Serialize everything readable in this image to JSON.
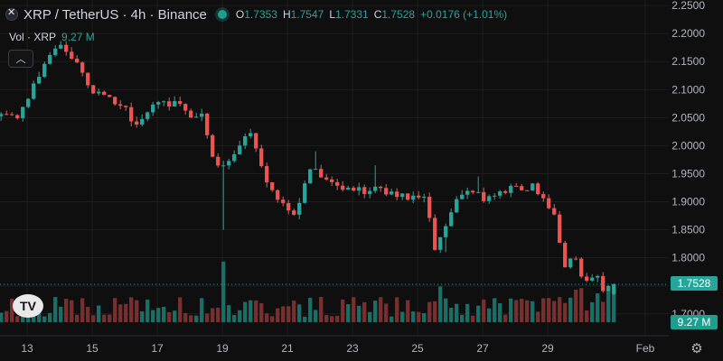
{
  "header": {
    "symbol": "XRP / TetherUS · 4h · Binance",
    "ohlc": {
      "o_label": "O",
      "o_value": "1.7353",
      "h_label": "H",
      "h_value": "1.7547",
      "l_label": "L",
      "l_value": "1.7331",
      "c_label": "C",
      "c_value": "1.7528",
      "change": "+0.0176 (+1.01%)"
    }
  },
  "volume_legend": {
    "label": "Vol · XRP",
    "value": "9.27 M"
  },
  "last_price_tag": "1.7528",
  "volume_tag": "9.27 M",
  "colors": {
    "up": "#26a69a",
    "down": "#ef5350",
    "background": "#0f0f0f",
    "grid": "#1e1e1e",
    "up_volume": "#1b6e66",
    "down_volume": "#7a2f2e"
  },
  "icons": {
    "logo": "xrp-logo-icon",
    "collapse": "chevron-up-icon",
    "settings": "gear-icon",
    "tradingview": "tradingview-logo-icon"
  },
  "chart_data": {
    "type": "candlestick",
    "title": "XRP / TetherUS · 4h · Binance",
    "x_tick_labels": [
      "13",
      "15",
      "17",
      "19",
      "21",
      "23",
      "25",
      "27",
      "29",
      "Feb"
    ],
    "y_tick_labels": [
      "1.7000",
      "1.7500",
      "1.8000",
      "1.8500",
      "1.9000",
      "1.9500",
      "2.0000",
      "2.0500",
      "2.1000",
      "2.1500",
      "2.2000",
      "2.2500"
    ],
    "y_range": [
      1.69,
      2.255
    ],
    "last_price": 1.7528,
    "last_volume": "9.27 M",
    "waypoints": [
      [
        1.7,
        2.06
      ],
      [
        12.8,
        2.05
      ],
      [
        13.2,
        2.09
      ],
      [
        13.7,
        2.15
      ],
      [
        14.1,
        2.18
      ],
      [
        14.6,
        2.15
      ],
      [
        15.1,
        2.1
      ],
      [
        15.6,
        2.08
      ],
      [
        16.1,
        2.07
      ],
      [
        16.5,
        2.03
      ],
      [
        17,
        2.07
      ],
      [
        17.5,
        2.08
      ],
      [
        18.1,
        2.06
      ],
      [
        18.6,
        2.05
      ],
      [
        18.9,
        1.97
      ],
      [
        19.1,
        1.96
      ],
      [
        19.6,
        1.99
      ],
      [
        20,
        2.02
      ],
      [
        20.5,
        1.94
      ],
      [
        21,
        1.89
      ],
      [
        21.4,
        1.88
      ],
      [
        21.8,
        1.96
      ],
      [
        22.3,
        1.94
      ],
      [
        22.9,
        1.92
      ],
      [
        23.6,
        1.92
      ],
      [
        24.3,
        1.92
      ],
      [
        24.9,
        1.91
      ],
      [
        25.4,
        1.9
      ],
      [
        25.7,
        1.82
      ],
      [
        26,
        1.86
      ],
      [
        26.5,
        1.91
      ],
      [
        26.9,
        1.92
      ],
      [
        27.4,
        1.9
      ],
      [
        28,
        1.92
      ],
      [
        28.6,
        1.93
      ],
      [
        29.1,
        1.91
      ],
      [
        29.4,
        1.87
      ],
      [
        29.7,
        1.79
      ],
      [
        30,
        1.8
      ],
      [
        30.3,
        1.76
      ],
      [
        30.6,
        1.77
      ],
      [
        30.9,
        1.74
      ],
      [
        31,
        1.7528
      ]
    ],
    "volume_spikes": [
      {
        "day": 19.03,
        "multiplier": 5.6
      },
      {
        "day": 25.75,
        "multiplier": 3.3
      },
      {
        "day": 29.9,
        "multiplier": 3.0
      },
      {
        "day": 30.5,
        "multiplier": 2.6
      },
      {
        "day": 30.8,
        "multiplier": 2.4
      }
    ]
  }
}
